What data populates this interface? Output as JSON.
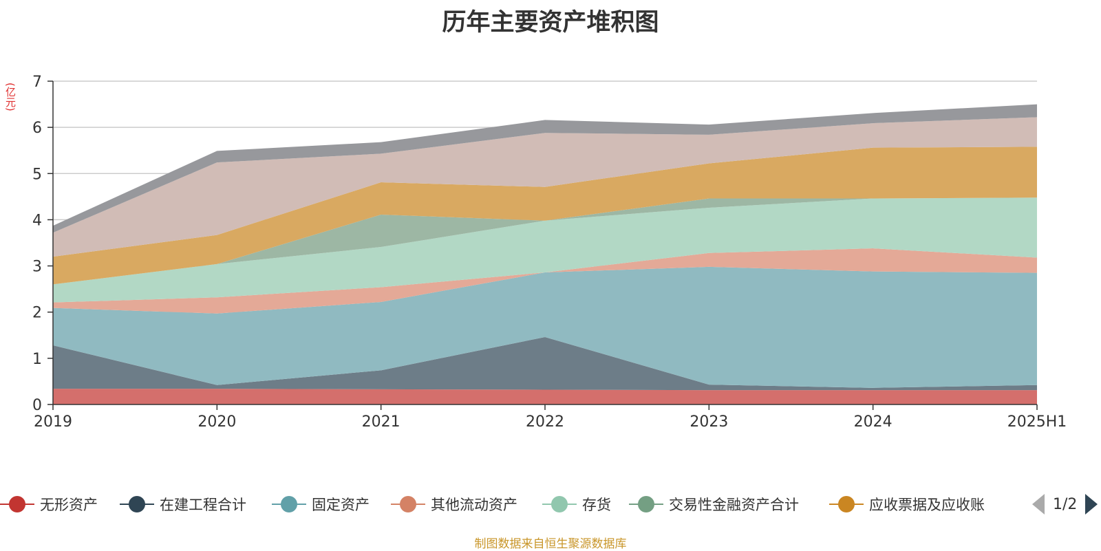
{
  "title": "历年主要资产堆积图",
  "unit_label": "(亿元)",
  "source": "制图数据来自恒生聚源数据库",
  "pager": {
    "text": "1/2",
    "prev_icon": "triangle-left-icon",
    "next_icon": "triangle-right-icon"
  },
  "chart_data": {
    "type": "area",
    "stacked": true,
    "categories": [
      "2019",
      "2020",
      "2021",
      "2022",
      "2023",
      "2024",
      "2025H1"
    ],
    "ylim": [
      0,
      7
    ],
    "yticks": [
      "0",
      "1",
      "2",
      "3",
      "4",
      "5",
      "6",
      "7"
    ],
    "grid": true,
    "legend_position": "bottom",
    "series": [
      {
        "name": "无形资产",
        "color": "#c23531",
        "fill": "#d46f6c",
        "values": [
          0.34,
          0.34,
          0.33,
          0.32,
          0.31,
          0.31,
          0.31
        ],
        "in_legend": true
      },
      {
        "name": "在建工程合计",
        "color": "#2f4554",
        "fill": "#6d7d88",
        "values": [
          0.94,
          0.08,
          0.41,
          1.14,
          0.12,
          0.05,
          0.11
        ],
        "in_legend": true
      },
      {
        "name": "固定资产",
        "color": "#61a0a8",
        "fill": "#90bac1",
        "values": [
          0.81,
          1.55,
          1.48,
          1.4,
          2.55,
          2.52,
          2.43
        ],
        "in_legend": true
      },
      {
        "name": "其他流动资产",
        "color": "#d48265",
        "fill": "#e4a997",
        "values": [
          0.12,
          0.35,
          0.32,
          0.0,
          0.3,
          0.5,
          0.33
        ],
        "in_legend": true
      },
      {
        "name": "存货",
        "color": "#91c7ae",
        "fill": "#b2d8c5",
        "values": [
          0.39,
          0.72,
          0.87,
          1.12,
          0.98,
          1.08,
          1.3
        ],
        "in_legend": true
      },
      {
        "name": "交易性金融资产合计",
        "color": "#749f83",
        "fill": "#9db7a4",
        "values": [
          0.0,
          0.0,
          0.7,
          0.0,
          0.2,
          0.0,
          0.0
        ],
        "in_legend": true
      },
      {
        "name": "应收票据及应收账",
        "color": "#ca8622",
        "fill": "#d9a961",
        "values": [
          0.6,
          0.63,
          0.7,
          0.73,
          0.76,
          1.1,
          1.1
        ],
        "in_legend": true
      },
      {
        "name": "",
        "color": "#bda29a",
        "fill": "#d1bcb6",
        "values": [
          0.52,
          1.57,
          0.62,
          1.17,
          0.62,
          0.53,
          0.64
        ],
        "in_legend": false
      },
      {
        "name": "",
        "color": "#6e7074",
        "fill": "#97989c",
        "values": [
          0.15,
          0.25,
          0.25,
          0.28,
          0.22,
          0.22,
          0.28
        ],
        "in_legend": false
      }
    ]
  }
}
